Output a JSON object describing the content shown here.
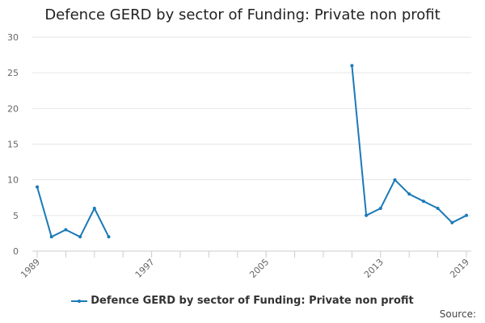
{
  "chart_data": {
    "type": "line",
    "title": "Defence GERD by sector of Funding: Private non profit",
    "xlabel": "",
    "ylabel": "",
    "ylim": [
      0,
      30
    ],
    "xlim": [
      1989,
      2019
    ],
    "x_ticks": [
      1989,
      1997,
      2005,
      2013,
      2019
    ],
    "y_ticks": [
      0,
      5,
      10,
      15,
      20,
      25,
      30
    ],
    "grid": true,
    "legend_position": "bottom",
    "series": [
      {
        "name": "Defence GERD by sector of Funding: Private non profit",
        "color": "#1a7ab8",
        "points": [
          {
            "x": 1989,
            "y": 9
          },
          {
            "x": 1990,
            "y": 2
          },
          {
            "x": 1991,
            "y": 3
          },
          {
            "x": 1992,
            "y": 2
          },
          {
            "x": 1993,
            "y": 6
          },
          {
            "x": 1994,
            "y": 2
          },
          {
            "x": 1995,
            "y": null
          },
          {
            "x": 1996,
            "y": null
          },
          {
            "x": 1997,
            "y": null
          },
          {
            "x": 1998,
            "y": null
          },
          {
            "x": 1999,
            "y": null
          },
          {
            "x": 2000,
            "y": null
          },
          {
            "x": 2001,
            "y": null
          },
          {
            "x": 2002,
            "y": null
          },
          {
            "x": 2003,
            "y": null
          },
          {
            "x": 2004,
            "y": null
          },
          {
            "x": 2005,
            "y": null
          },
          {
            "x": 2006,
            "y": null
          },
          {
            "x": 2007,
            "y": null
          },
          {
            "x": 2008,
            "y": null
          },
          {
            "x": 2009,
            "y": null
          },
          {
            "x": 2010,
            "y": null
          },
          {
            "x": 2011,
            "y": 26
          },
          {
            "x": 2012,
            "y": 5
          },
          {
            "x": 2013,
            "y": 6
          },
          {
            "x": 2014,
            "y": 10
          },
          {
            "x": 2015,
            "y": 8
          },
          {
            "x": 2016,
            "y": 7
          },
          {
            "x": 2017,
            "y": 6
          },
          {
            "x": 2018,
            "y": 4
          },
          {
            "x": 2019,
            "y": 5
          }
        ]
      }
    ]
  },
  "footer": {
    "source_label": "Source:"
  }
}
